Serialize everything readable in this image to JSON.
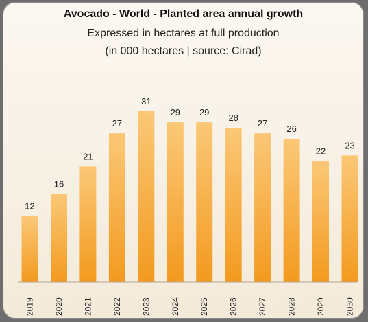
{
  "chart_data": {
    "type": "bar",
    "title": "Avocado - World - Planted area annual growth",
    "subtitle_lines": [
      "Expressed in hectares at full production",
      "(in 000 hectares | source: Cirad)"
    ],
    "categories": [
      "2019",
      "2020",
      "2021",
      "2022",
      "2023",
      "2024",
      "2025",
      "2026",
      "2027",
      "2028",
      "2029",
      "2030"
    ],
    "values": [
      12,
      16,
      21,
      27,
      31,
      29,
      29,
      28,
      27,
      26,
      22,
      23
    ],
    "ylim": [
      0,
      31
    ],
    "grid": false,
    "legend": "none",
    "bar_color_top": "#fbc877",
    "bar_color_bottom": "#f39a1f"
  }
}
